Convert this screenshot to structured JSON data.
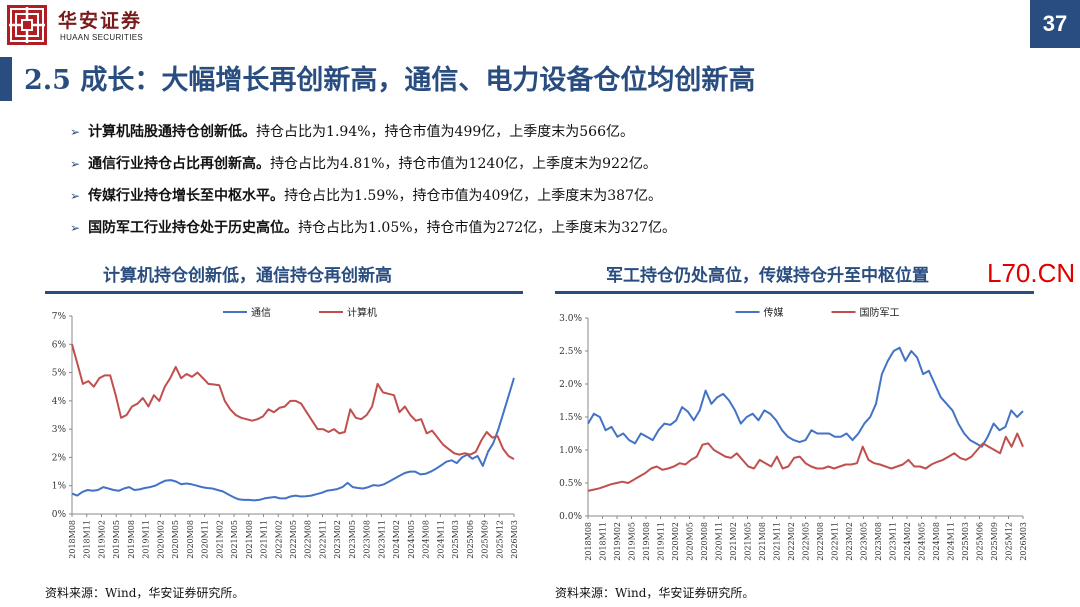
{
  "header": {
    "brand_cn": "华安证券",
    "brand_en": "HUAAN SECURITIES",
    "page_number": "37",
    "logo_color": "#b01e24",
    "accent_color": "#2a4d80"
  },
  "title": "2.5 成长：大幅增长再创新高，通信、电力设备仓位均创新高",
  "bullets": [
    {
      "bold": "计算机陆股通持仓创新低。",
      "text": "持仓占比为1.94%，持仓市值为499亿，上季度末为566亿。"
    },
    {
      "bold": "通信行业持仓占比再创新高。",
      "text": "持仓占比为4.81%，持仓市值为1240亿，上季度末为922亿。"
    },
    {
      "bold": "传媒行业持仓增长至中枢水平。",
      "text": "持仓占比为1.59%，持仓市值为409亿，上季度末为387亿。"
    },
    {
      "bold": "国防军工行业持仓处于历史高位。",
      "text": "持仓占比为1.05%，持仓市值为272亿，上季度末为327亿。"
    }
  ],
  "watermark": "L70.CN",
  "chart_data": [
    {
      "type": "line",
      "title": "计算机持仓创新低，通信持仓再创新高",
      "source": "资料来源：Wind，华安证券研究所。",
      "y_ticks": [
        "0%",
        "1%",
        "2%",
        "3%",
        "4%",
        "5%",
        "6%",
        "7%"
      ],
      "ylim": [
        0,
        7
      ],
      "x_tick_labels": [
        "2018M08",
        "2018M11",
        "2019M02",
        "2019M05",
        "2019M08",
        "2019M11",
        "2020M02",
        "2020M05",
        "2020M08",
        "2020M11",
        "2021M02",
        "2021M05",
        "2021M08",
        "2021M11",
        "2022M02",
        "2022M05",
        "2022M08",
        "2022M11",
        "2023M02",
        "2023M05",
        "2023M08",
        "2023M11",
        "2024M02",
        "2024M05",
        "2024M08",
        "2024M11",
        "2025M03",
        "2025M06",
        "2025M09",
        "2025M12",
        "2026M03"
      ],
      "legend_position": "top-center",
      "grid": false,
      "series": [
        {
          "name": "通信",
          "color": "#4472c4",
          "values": [
            0.72,
            0.65,
            0.78,
            0.85,
            0.82,
            0.85,
            0.95,
            0.9,
            0.85,
            0.82,
            0.9,
            0.95,
            0.85,
            0.87,
            0.92,
            0.95,
            1.0,
            1.1,
            1.18,
            1.2,
            1.15,
            1.05,
            1.08,
            1.05,
            1.0,
            0.95,
            0.92,
            0.9,
            0.85,
            0.8,
            0.7,
            0.6,
            0.52,
            0.5,
            0.5,
            0.48,
            0.5,
            0.55,
            0.58,
            0.6,
            0.55,
            0.55,
            0.62,
            0.65,
            0.62,
            0.63,
            0.65,
            0.7,
            0.75,
            0.82,
            0.85,
            0.88,
            0.95,
            1.1,
            0.95,
            0.92,
            0.9,
            0.95,
            1.02,
            1.0,
            1.05,
            1.15,
            1.25,
            1.35,
            1.45,
            1.5,
            1.5,
            1.4,
            1.42,
            1.5,
            1.6,
            1.72,
            1.85,
            1.9,
            1.8,
            2.0,
            2.1,
            1.95,
            2.05,
            1.7,
            2.2,
            2.5,
            3.0,
            3.6,
            4.2,
            4.81
          ]
        },
        {
          "name": "计算机",
          "color": "#c0504d",
          "values": [
            6.0,
            5.3,
            4.6,
            4.7,
            4.5,
            4.8,
            4.9,
            4.9,
            4.2,
            3.4,
            3.5,
            3.8,
            3.9,
            4.1,
            3.8,
            4.2,
            4.0,
            4.5,
            4.8,
            5.2,
            4.8,
            4.95,
            4.85,
            5.0,
            4.8,
            4.6,
            4.58,
            4.55,
            4.0,
            3.7,
            3.5,
            3.4,
            3.35,
            3.3,
            3.35,
            3.45,
            3.7,
            3.6,
            3.75,
            3.8,
            4.0,
            4.0,
            3.9,
            3.6,
            3.3,
            3.0,
            3.0,
            2.9,
            3.0,
            2.85,
            2.9,
            3.7,
            3.4,
            3.35,
            3.5,
            3.8,
            4.6,
            4.3,
            4.25,
            4.2,
            3.6,
            3.8,
            3.5,
            3.3,
            3.35,
            2.85,
            2.95,
            2.7,
            2.45,
            2.3,
            2.15,
            2.1,
            2.15,
            2.1,
            2.2,
            2.6,
            2.9,
            2.7,
            2.75,
            2.3,
            2.05,
            1.94
          ]
        }
      ]
    },
    {
      "type": "line",
      "title": "军工持仓仍处高位，传媒持仓升至中枢位置",
      "source": "资料来源：Wind，华安证券研究所。",
      "y_ticks": [
        "0.0%",
        "0.5%",
        "1.0%",
        "1.5%",
        "2.0%",
        "2.5%",
        "3.0%"
      ],
      "ylim": [
        0,
        3
      ],
      "x_tick_labels": [
        "2018M08",
        "2018M11",
        "2019M02",
        "2019M05",
        "2019M08",
        "2019M11",
        "2020M02",
        "2020M05",
        "2020M08",
        "2020M11",
        "2021M02",
        "2021M05",
        "2021M08",
        "2021M11",
        "2022M02",
        "2022M05",
        "2022M08",
        "2022M11",
        "2023M02",
        "2023M05",
        "2023M08",
        "2023M11",
        "2024M02",
        "2024M05",
        "2024M08",
        "2024M11",
        "2025M03",
        "2025M06",
        "2025M09",
        "2025M12",
        "2026M03"
      ],
      "legend_position": "top-center",
      "grid": false,
      "series": [
        {
          "name": "传媒",
          "color": "#4472c4",
          "values": [
            1.4,
            1.55,
            1.5,
            1.3,
            1.35,
            1.2,
            1.25,
            1.15,
            1.1,
            1.25,
            1.2,
            1.15,
            1.3,
            1.4,
            1.38,
            1.45,
            1.65,
            1.58,
            1.45,
            1.6,
            1.9,
            1.7,
            1.8,
            1.85,
            1.75,
            1.6,
            1.4,
            1.5,
            1.55,
            1.45,
            1.6,
            1.55,
            1.45,
            1.3,
            1.2,
            1.15,
            1.12,
            1.15,
            1.3,
            1.25,
            1.25,
            1.25,
            1.2,
            1.2,
            1.25,
            1.15,
            1.25,
            1.4,
            1.5,
            1.7,
            2.15,
            2.35,
            2.5,
            2.55,
            2.35,
            2.5,
            2.4,
            2.15,
            2.2,
            2.0,
            1.8,
            1.7,
            1.6,
            1.4,
            1.25,
            1.15,
            1.1,
            1.05,
            1.2,
            1.4,
            1.3,
            1.35,
            1.6,
            1.5,
            1.59
          ]
        },
        {
          "name": "国防军工",
          "color": "#c0504d",
          "values": [
            0.38,
            0.4,
            0.42,
            0.45,
            0.48,
            0.5,
            0.52,
            0.5,
            0.55,
            0.6,
            0.65,
            0.72,
            0.75,
            0.7,
            0.72,
            0.75,
            0.8,
            0.78,
            0.85,
            0.9,
            1.08,
            1.1,
            1.0,
            0.95,
            0.9,
            0.88,
            0.95,
            0.85,
            0.75,
            0.72,
            0.85,
            0.8,
            0.75,
            0.9,
            0.72,
            0.75,
            0.88,
            0.9,
            0.8,
            0.75,
            0.72,
            0.72,
            0.75,
            0.72,
            0.75,
            0.78,
            0.78,
            0.8,
            1.05,
            0.85,
            0.8,
            0.78,
            0.75,
            0.72,
            0.75,
            0.78,
            0.85,
            0.75,
            0.75,
            0.72,
            0.78,
            0.82,
            0.85,
            0.9,
            0.95,
            0.88,
            0.85,
            0.9,
            1.0,
            1.1,
            1.05,
            1.0,
            0.95,
            1.2,
            1.05,
            1.25,
            1.05
          ]
        }
      ]
    }
  ]
}
